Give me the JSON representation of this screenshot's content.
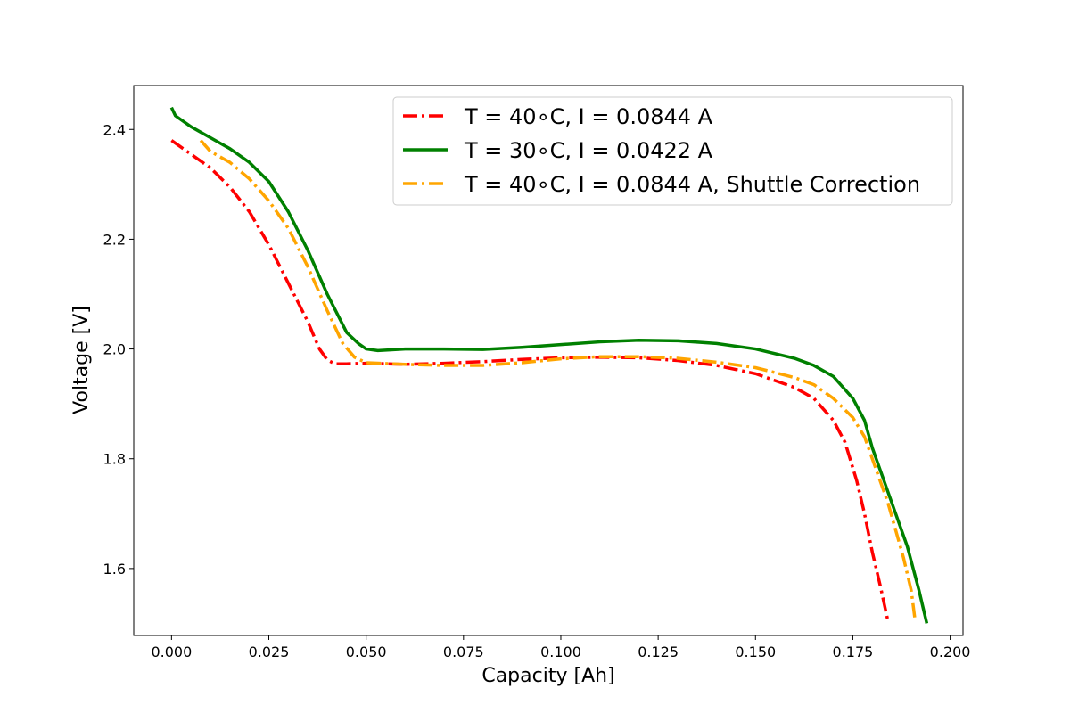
{
  "chart_data": {
    "type": "line",
    "title": "",
    "xlabel": "Capacity [Ah]",
    "ylabel": "Voltage [V]",
    "xlim": [
      -0.0097,
      0.2033
    ],
    "ylim": [
      1.478,
      2.48
    ],
    "xticks": [
      0.0,
      0.025,
      0.05,
      0.075,
      0.1,
      0.125,
      0.15,
      0.175,
      0.2
    ],
    "xtick_labels": [
      "0.000",
      "0.025",
      "0.050",
      "0.075",
      "0.100",
      "0.125",
      "0.150",
      "0.175",
      "0.200"
    ],
    "yticks": [
      1.6,
      1.8,
      2.0,
      2.2,
      2.4
    ],
    "ytick_labels": [
      "1.6",
      "1.8",
      "2.0",
      "2.2",
      "2.4"
    ],
    "grid": false,
    "legend_position": "top-right",
    "series": [
      {
        "name": "T = 40$^\\circ$C, I = 0.0844 A",
        "legend_label": "T = 40∘C, I = 0.0844 A",
        "color": "#ff0000",
        "dash": "dashdot",
        "x": [
          0.0,
          0.005,
          0.01,
          0.015,
          0.02,
          0.025,
          0.03,
          0.035,
          0.038,
          0.04,
          0.042,
          0.045,
          0.05,
          0.06,
          0.07,
          0.08,
          0.09,
          0.1,
          0.11,
          0.12,
          0.13,
          0.14,
          0.15,
          0.16,
          0.165,
          0.17,
          0.173,
          0.176,
          0.178,
          0.18,
          0.182,
          0.184
        ],
        "y": [
          2.38,
          2.355,
          2.33,
          2.295,
          2.25,
          2.19,
          2.12,
          2.05,
          2.0,
          1.98,
          1.973,
          1.973,
          1.974,
          1.972,
          1.974,
          1.977,
          1.981,
          1.984,
          1.985,
          1.984,
          1.979,
          1.97,
          1.955,
          1.93,
          1.91,
          1.87,
          1.83,
          1.76,
          1.7,
          1.63,
          1.57,
          1.505
        ]
      },
      {
        "name": "T = 30$^\\circ$C, I = 0.0422 A",
        "legend_label": "T = 30∘C, I = 0.0422 A",
        "color": "#008000",
        "dash": "solid",
        "x": [
          0.0,
          0.001,
          0.005,
          0.01,
          0.015,
          0.02,
          0.025,
          0.03,
          0.035,
          0.04,
          0.045,
          0.048,
          0.05,
          0.053,
          0.06,
          0.07,
          0.08,
          0.09,
          0.1,
          0.11,
          0.12,
          0.13,
          0.14,
          0.15,
          0.16,
          0.165,
          0.17,
          0.175,
          0.178,
          0.18,
          0.183,
          0.186,
          0.189,
          0.192,
          0.194
        ],
        "y": [
          2.44,
          2.425,
          2.405,
          2.385,
          2.365,
          2.34,
          2.305,
          2.25,
          2.18,
          2.1,
          2.03,
          2.01,
          2.0,
          1.997,
          2.0,
          2.0,
          1.999,
          2.003,
          2.008,
          2.013,
          2.016,
          2.015,
          2.01,
          2.0,
          1.983,
          1.97,
          1.95,
          1.91,
          1.87,
          1.82,
          1.76,
          1.7,
          1.64,
          1.56,
          1.5
        ]
      },
      {
        "name": "T = 40$^\\circ$C, I = 0.0844 A, Shuttle Correction",
        "legend_label": "T = 40∘C, I = 0.0844 A, Shuttle Correction",
        "color": "#ffa500",
        "dash": "dashdot",
        "x": [
          0.0075,
          0.01,
          0.015,
          0.02,
          0.025,
          0.03,
          0.035,
          0.04,
          0.044,
          0.047,
          0.05,
          0.06,
          0.07,
          0.08,
          0.09,
          0.1,
          0.11,
          0.12,
          0.13,
          0.14,
          0.15,
          0.16,
          0.165,
          0.17,
          0.175,
          0.178,
          0.181,
          0.184,
          0.186,
          0.188,
          0.19,
          0.191
        ],
        "y": [
          2.38,
          2.36,
          2.34,
          2.31,
          2.27,
          2.22,
          2.15,
          2.07,
          2.01,
          1.985,
          1.975,
          1.972,
          1.97,
          1.97,
          1.975,
          1.982,
          1.986,
          1.986,
          1.983,
          1.976,
          1.966,
          1.948,
          1.935,
          1.91,
          1.875,
          1.84,
          1.78,
          1.72,
          1.67,
          1.62,
          1.56,
          1.505
        ]
      }
    ]
  }
}
